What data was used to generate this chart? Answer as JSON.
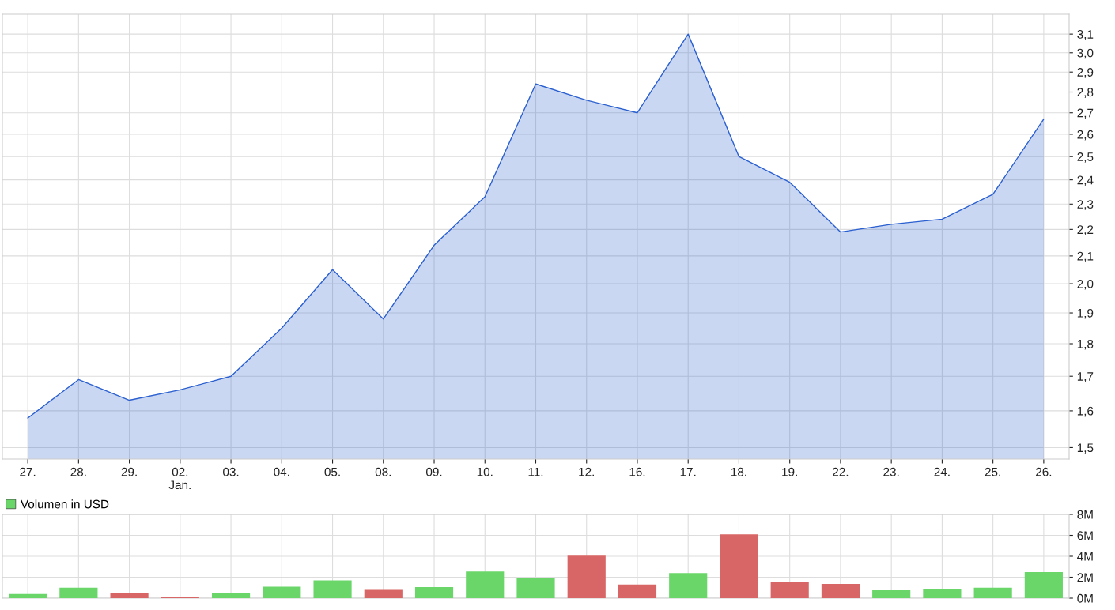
{
  "chart_data": [
    {
      "type": "area",
      "categories": [
        "27.",
        "28.",
        "29.",
        "02.\nJan.",
        "03.",
        "04.",
        "05.",
        "08.",
        "09.",
        "10.",
        "11.",
        "12.",
        "16.",
        "17.",
        "18.",
        "19.",
        "22.",
        "23.",
        "24.",
        "25.",
        "26."
      ],
      "series": [
        {
          "color": "#2a5fd0",
          "values": [
            1.58,
            1.69,
            1.63,
            1.66,
            1.7,
            1.85,
            2.05,
            1.88,
            2.14,
            2.33,
            2.84,
            2.76,
            2.7,
            3.1,
            2.5,
            2.39,
            2.19,
            2.22,
            2.24,
            2.34,
            2.67
          ]
        }
      ],
      "log": "y",
      "ylim": [
        1.47,
        3.21
      ],
      "yticks": [
        {
          "value": 1.5,
          "label": "1,5"
        },
        {
          "value": 1.6,
          "label": "1,6"
        },
        {
          "value": 1.7,
          "label": "1,7"
        },
        {
          "value": 1.8,
          "label": "1,8"
        },
        {
          "value": 1.9,
          "label": "1,9"
        },
        {
          "value": 2.0,
          "label": "2,0"
        },
        {
          "value": 2.1,
          "label": "2,1"
        },
        {
          "value": 2.2,
          "label": "2,2"
        },
        {
          "value": 2.3,
          "label": "2,3"
        },
        {
          "value": 2.4,
          "label": "2,4"
        },
        {
          "value": 2.5,
          "label": "2,5"
        },
        {
          "value": 2.6,
          "label": "2,6"
        },
        {
          "value": 2.7,
          "label": "2,7"
        },
        {
          "value": 2.8,
          "label": "2,8"
        },
        {
          "value": 2.9,
          "label": "2,9"
        },
        {
          "value": 3.0,
          "label": "3,0"
        },
        {
          "value": 3.1,
          "label": "3,1"
        }
      ],
      "grid": true,
      "legend": false
    },
    {
      "type": "bar",
      "categories": [
        "27.",
        "28.",
        "29.",
        "02.",
        "03.",
        "04.",
        "05.",
        "08.",
        "09.",
        "10.",
        "11.",
        "12.",
        "16.",
        "17.",
        "18.",
        "19.",
        "22.",
        "23.",
        "24.",
        "25.",
        "26."
      ],
      "tick_labels": "y",
      "series": [
        {
          "name": "Volumen in USD",
          "color": "#6ad66a",
          "values": [
            0.4,
            1.0,
            0.5,
            0.15,
            0.5,
            1.1,
            1.7,
            0.8,
            1.05,
            2.55,
            1.95,
            4.05,
            1.3,
            2.4,
            6.1,
            1.5,
            1.35,
            0.75,
            0.9,
            1.0,
            2.5
          ],
          "colors": [
            "#6ad66a",
            "#6ad66a",
            "#d96666",
            "#d96666",
            "#6ad66a",
            "#6ad66a",
            "#6ad66a",
            "#d96666",
            "#6ad66a",
            "#6ad66a",
            "#6ad66a",
            "#d96666",
            "#d96666",
            "#6ad66a",
            "#d96666",
            "#d96666",
            "#d96666",
            "#6ad66a",
            "#6ad66a",
            "#6ad66a",
            "#6ad66a"
          ]
        }
      ],
      "ylim": [
        0,
        8
      ],
      "yticks": [
        {
          "value": 0,
          "label": "0M"
        },
        {
          "value": 2,
          "label": "2M"
        },
        {
          "value": 4,
          "label": "4M"
        },
        {
          "value": 6,
          "label": "6M"
        },
        {
          "value": 8,
          "label": "8M"
        }
      ],
      "grid": true,
      "legend": "top left"
    }
  ]
}
